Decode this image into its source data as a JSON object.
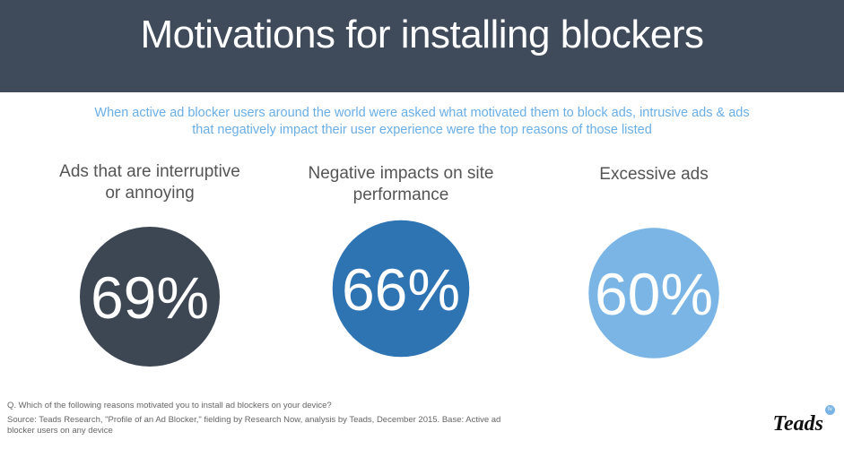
{
  "header": {
    "title": "Motivations for installing blockers"
  },
  "subtitle": {
    "line1": "When active ad blocker users around the world were asked what motivated them to block ads, intrusive ads & ads",
    "line2": "that negatively impact their user experience were the top reasons of those listed"
  },
  "chart_data": {
    "type": "bubble",
    "categories": [
      "Ads that are interruptive or annoying",
      "Negative impacts on site performance",
      "Excessive ads"
    ],
    "category_lines": [
      [
        "Ads that are interruptive",
        "or annoying"
      ],
      [
        "Negative impacts on site",
        "performance"
      ],
      [
        "Excessive ads"
      ]
    ],
    "values": [
      69,
      66,
      60
    ],
    "labels": [
      "69%",
      "66%",
      "60%"
    ],
    "colors": [
      "#3d4754",
      "#2e74b3",
      "#7ab5e6"
    ]
  },
  "footer": {
    "question": "Q. Which of the following reasons motivated you to install ad blockers on your device?",
    "source": "Source: Teads Research, \"Profile of an Ad Blocker,\" fielding by Research Now, analysis by Teads, December 2015. Base: Active ad blocker users on any device"
  },
  "logo": {
    "text": "Teads",
    "badge": "tv"
  }
}
